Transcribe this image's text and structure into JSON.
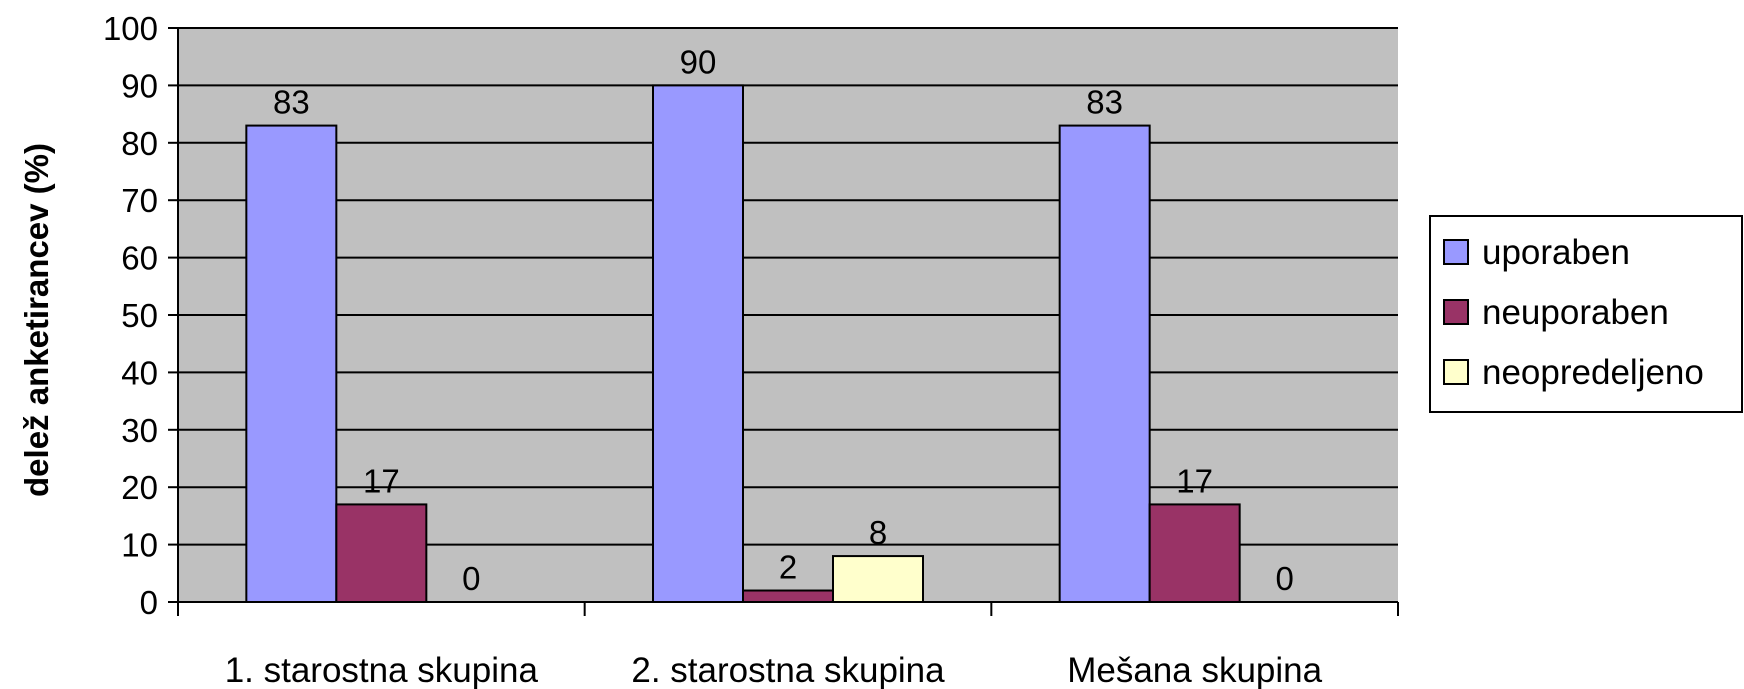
{
  "chart_data": {
    "type": "bar",
    "categories": [
      "1. starostna skupina",
      "2. starostna skupina",
      "Mešana skupina"
    ],
    "series": [
      {
        "name": "uporaben",
        "values": [
          83,
          90,
          83
        ],
        "labels": [
          "83",
          "90",
          "83"
        ],
        "color": "#9999ff"
      },
      {
        "name": "neuporaben",
        "values": [
          17,
          2,
          17
        ],
        "labels": [
          "17",
          "2",
          "17"
        ],
        "color": "#993366"
      },
      {
        "name": "neopredeljeno",
        "values": [
          0,
          8,
          0
        ],
        "labels": [
          "0",
          "8",
          "0"
        ],
        "color": "#ffffcc"
      }
    ],
    "title": "",
    "xlabel": "",
    "ylabel": "delež anketirancev (%)",
    "ylim": [
      0,
      100
    ],
    "yticks": [
      "0",
      "10",
      "20",
      "30",
      "40",
      "50",
      "60",
      "70",
      "80",
      "90",
      "100"
    ],
    "grid": true,
    "legend_position": "right",
    "plot_background": "#c0c0c0"
  }
}
